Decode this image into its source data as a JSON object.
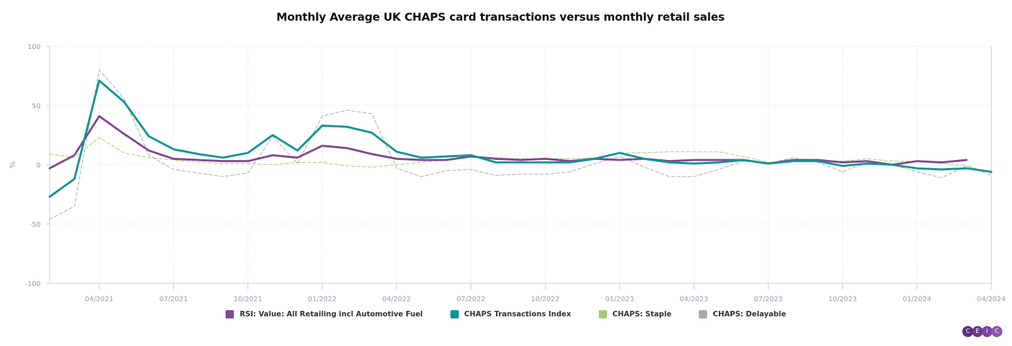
{
  "chart_data": {
    "type": "line",
    "title": "Monthly Average UK CHAPS card transactions versus monthly retail sales",
    "xlabel": "",
    "ylabel": "%",
    "ylim": [
      -100,
      100
    ],
    "yticks": [
      100,
      50,
      0,
      -50,
      -100
    ],
    "grid": true,
    "legend_position": "bottom",
    "x": [
      "02/2021",
      "03/2021",
      "04/2021",
      "05/2021",
      "06/2021",
      "07/2021",
      "08/2021",
      "09/2021",
      "10/2021",
      "11/2021",
      "12/2021",
      "01/2022",
      "02/2022",
      "03/2022",
      "04/2022",
      "05/2022",
      "06/2022",
      "07/2022",
      "08/2022",
      "09/2022",
      "10/2022",
      "11/2022",
      "12/2022",
      "01/2023",
      "02/2023",
      "03/2023",
      "04/2023",
      "05/2023",
      "06/2023",
      "07/2023",
      "08/2023",
      "09/2023",
      "10/2023",
      "11/2023",
      "12/2023",
      "01/2024",
      "02/2024",
      "03/2024",
      "04/2024"
    ],
    "xtick_labels": [
      "04/2021",
      "07/2021",
      "10/2021",
      "01/2022",
      "04/2022",
      "07/2022",
      "10/2022",
      "01/2023",
      "04/2023",
      "07/2023",
      "10/2023",
      "01/2024",
      "04/2024"
    ],
    "series": [
      {
        "name": "RSI: Value: All Retailing incl Automotive Fuel",
        "color": "#7f4a8f",
        "style": "solid",
        "width": 3,
        "values": [
          -3,
          8,
          41,
          26,
          12,
          5,
          4,
          3,
          3,
          8,
          6,
          16,
          14,
          9,
          5,
          4,
          4,
          7,
          5,
          4,
          5,
          3,
          5,
          4,
          5,
          3,
          4,
          4,
          4,
          1,
          4,
          4,
          2,
          3,
          0,
          3,
          2,
          4,
          null
        ]
      },
      {
        "name": "CHAPS Transactions Index",
        "color": "#0e9594",
        "style": "solid",
        "width": 3,
        "values": [
          -27,
          -12,
          71,
          53,
          24,
          13,
          9,
          6,
          10,
          25,
          12,
          33,
          32,
          27,
          11,
          6,
          7,
          8,
          2,
          2,
          2,
          2,
          5,
          10,
          5,
          2,
          1,
          2,
          4,
          1,
          3,
          3,
          -1,
          1,
          0,
          -3,
          -4,
          -3,
          -6
        ]
      },
      {
        "name": "CHAPS: Staple",
        "color": "#a4cc74",
        "style": "dashed",
        "width": 1,
        "values": [
          9,
          6,
          23,
          10,
          6,
          4,
          2,
          1,
          1,
          0,
          2,
          2,
          -1,
          -2,
          0,
          2,
          4,
          7,
          6,
          5,
          5,
          5,
          6,
          10,
          10,
          11,
          11,
          11,
          7,
          2,
          3,
          3,
          3,
          5,
          3,
          3,
          1,
          -1,
          -9
        ]
      },
      {
        "name": "CHAPS: Delayable",
        "color": "#a8a8a8",
        "style": "dashed",
        "width": 1,
        "values": [
          -46,
          -35,
          80,
          56,
          8,
          -4,
          -7,
          -10,
          -7,
          24,
          1,
          41,
          46,
          43,
          -3,
          -10,
          -5,
          -4,
          -9,
          -8,
          -8,
          -6,
          1,
          7,
          -2,
          -10,
          -10,
          -4,
          3,
          1,
          6,
          2,
          -6,
          2,
          0,
          -6,
          -11,
          -1,
          -7
        ]
      }
    ]
  },
  "legend": {
    "items": [
      {
        "label": "RSI: Value: All Retailing incl Automotive Fuel",
        "color": "#7f4a8f"
      },
      {
        "label": "CHAPS Transactions Index",
        "color": "#0e9594"
      },
      {
        "label": "CHAPS: Staple",
        "color": "#a4cc74"
      },
      {
        "label": "CHAPS: Delayable",
        "color": "#a8a8a8"
      }
    ]
  },
  "logo": {
    "letters": [
      "C",
      "E",
      "I",
      "C"
    ]
  }
}
